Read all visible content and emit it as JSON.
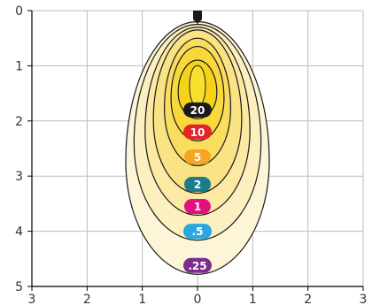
{
  "chart_data": {
    "type": "contour",
    "title": "",
    "xlabel": "",
    "ylabel": "",
    "x_ticks": [
      "3",
      "2",
      "1",
      "0",
      "1",
      "2",
      "3"
    ],
    "y_ticks": [
      "0",
      "1",
      "2",
      "3",
      "4",
      "5"
    ],
    "xlim": [
      -3,
      3
    ],
    "ylim": [
      0,
      5
    ],
    "y_inverted": true,
    "grid": true,
    "source_x": 0,
    "source_y": 0,
    "levels": [
      {
        "label": ".25",
        "color": "#7b2d8e",
        "x": 0,
        "y": 4.62,
        "half_width": 1.3,
        "top": 0.2
      },
      {
        "label": ".5",
        "color": "#29a7df",
        "x": 0,
        "y": 4.0,
        "half_width": 1.15,
        "top": 0.25
      },
      {
        "label": "1",
        "color": "#e3107f",
        "x": 0,
        "y": 3.55,
        "half_width": 0.95,
        "top": 0.3
      },
      {
        "label": "2",
        "color": "#1c7c8c",
        "x": 0,
        "y": 3.15,
        "half_width": 0.8,
        "top": 0.35
      },
      {
        "label": "5",
        "color": "#f6a623",
        "x": 0,
        "y": 2.65,
        "half_width": 0.6,
        "top": 0.5
      },
      {
        "label": "10",
        "color": "#e5232a",
        "x": 0,
        "y": 2.2,
        "half_width": 0.48,
        "top": 0.65
      },
      {
        "label": "20",
        "color": "#1a1a1a",
        "x": 0,
        "y": 1.8,
        "half_width": 0.35,
        "top": 0.9
      }
    ],
    "fill_colors": [
      "#fdf5d8",
      "#fcefc0",
      "#fbe9a4",
      "#fae384",
      "#f9dd5e",
      "#f8d83a",
      "#f7d21a"
    ],
    "axis_color": "#000000",
    "grid_color": "#bbbbbb"
  }
}
